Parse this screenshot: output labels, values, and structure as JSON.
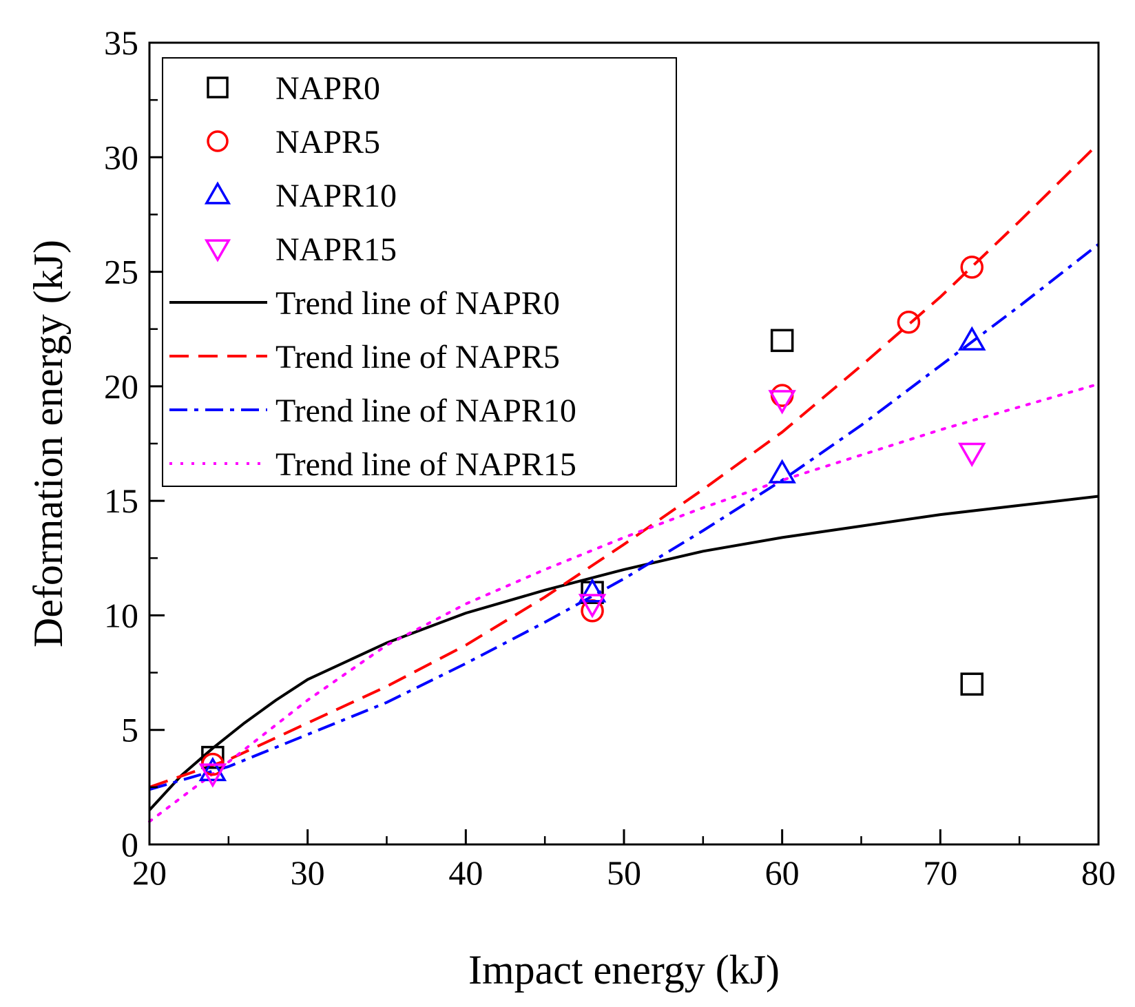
{
  "chart_data": {
    "type": "scatter",
    "title": "",
    "xlabel": "Impact energy (kJ)",
    "ylabel": "Deformation energy (kJ)",
    "xlim": [
      20,
      80
    ],
    "ylim": [
      0,
      35
    ],
    "xticks": [
      20,
      30,
      40,
      50,
      60,
      70,
      80
    ],
    "yticks": [
      0,
      5,
      10,
      15,
      20,
      25,
      30,
      35
    ],
    "grid": false,
    "legend_position": "top-left",
    "series": [
      {
        "name": "NAPR0",
        "marker": "square",
        "color": "#000000",
        "x": [
          24,
          48,
          60,
          72
        ],
        "y": [
          3.8,
          11.0,
          22.0,
          7.0
        ]
      },
      {
        "name": "NAPR5",
        "marker": "circle",
        "color": "#ff0000",
        "x": [
          24,
          48,
          60,
          68,
          72
        ],
        "y": [
          3.5,
          10.2,
          19.6,
          22.8,
          25.2
        ]
      },
      {
        "name": "NAPR10",
        "marker": "triangle-up",
        "color": "#0000ff",
        "x": [
          24,
          48,
          60,
          72
        ],
        "y": [
          3.2,
          11.0,
          16.2,
          22.0
        ]
      },
      {
        "name": "NAPR15",
        "marker": "triangle-down",
        "color": "#ff00ff",
        "x": [
          24,
          48,
          60,
          72
        ],
        "y": [
          3.1,
          10.5,
          19.4,
          17.1
        ]
      }
    ],
    "trend_lines": [
      {
        "name": "Trend line of NAPR0",
        "style": "solid",
        "color": "#000000",
        "x": [
          20,
          22,
          24,
          26,
          28,
          30,
          35,
          40,
          45,
          50,
          55,
          60,
          65,
          70,
          75,
          80
        ],
        "y": [
          1.5,
          3.0,
          4.2,
          5.3,
          6.3,
          7.2,
          8.8,
          10.1,
          11.1,
          12.0,
          12.8,
          13.4,
          13.9,
          14.4,
          14.8,
          15.2
        ]
      },
      {
        "name": "Trend line of NAPR5",
        "style": "dashed",
        "color": "#ff0000",
        "x": [
          20,
          25,
          30,
          35,
          40,
          45,
          50,
          55,
          60,
          65,
          70,
          75,
          80
        ],
        "y": [
          2.5,
          3.7,
          5.3,
          6.9,
          8.7,
          10.8,
          13.1,
          15.5,
          18.0,
          20.9,
          23.9,
          27.2,
          30.6
        ]
      },
      {
        "name": "Trend line of NAPR10",
        "style": "dashdot",
        "color": "#0000ff",
        "x": [
          20,
          25,
          30,
          35,
          40,
          45,
          50,
          55,
          60,
          65,
          70,
          75,
          80
        ],
        "y": [
          2.4,
          3.4,
          4.8,
          6.2,
          7.9,
          9.7,
          11.6,
          13.7,
          15.9,
          18.3,
          20.9,
          23.5,
          26.2
        ]
      },
      {
        "name": "Trend line of NAPR15",
        "style": "dotted",
        "color": "#ff00ff",
        "x": [
          20,
          25,
          30,
          35,
          40,
          45,
          50,
          55,
          60,
          65,
          70,
          75,
          80
        ],
        "y": [
          1.0,
          3.6,
          6.3,
          8.7,
          10.5,
          12.0,
          13.4,
          14.7,
          15.9,
          17.0,
          18.1,
          19.1,
          20.1
        ]
      }
    ]
  }
}
